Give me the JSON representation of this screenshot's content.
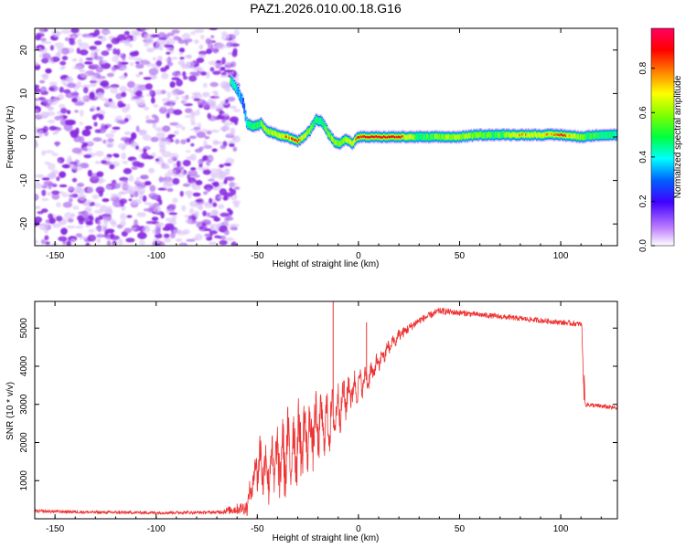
{
  "title": "PAZ1.2026.010.00.18.G16",
  "chart_data": [
    {
      "type": "heatmap",
      "name": "spectrogram",
      "xlabel": "Height of straight line (km)",
      "ylabel": "Frequency (Hz)",
      "xlim": [
        -160,
        128
      ],
      "ylim": [
        -25,
        25
      ],
      "xticks": [
        -150,
        -100,
        -50,
        0,
        50,
        100
      ],
      "yticks": [
        -20,
        -10,
        0,
        10,
        20
      ],
      "noise_region_x": [
        -160,
        -60
      ],
      "ridge": {
        "x": [
          -63,
          -60,
          -57,
          -55,
          -52,
          -48,
          -45,
          -40,
          -35,
          -30,
          -27,
          -24,
          -21,
          -18,
          -15,
          -12,
          -9,
          -6,
          -3,
          0,
          10,
          20,
          30,
          40,
          50,
          60,
          70,
          80,
          90,
          100,
          110,
          120,
          128
        ],
        "freq": [
          13,
          11,
          8,
          3,
          2.5,
          3,
          1.5,
          0.5,
          0,
          -1,
          0,
          1.5,
          4,
          3.5,
          1,
          -1,
          -1.5,
          -0.5,
          -1.5,
          0,
          0,
          0,
          0,
          0,
          0,
          0.5,
          0.5,
          0.5,
          0.5,
          0.5,
          0,
          0.5,
          0.5
        ],
        "amplitude": [
          0.5,
          0.4,
          0.3,
          0.45,
          0.5,
          0.6,
          0.65,
          0.7,
          0.8,
          0.9,
          0.7,
          0.6,
          0.5,
          0.5,
          0.6,
          0.65,
          0.6,
          0.7,
          0.7,
          0.9,
          0.95,
          0.9,
          0.5,
          0.6,
          0.65,
          0.6,
          0.55,
          0.8,
          0.7,
          0.9,
          0.6,
          0.5,
          0.45
        ]
      },
      "colorbar": {
        "label": "Normalized spectral amplitude",
        "range": [
          0,
          1
        ],
        "ticks": [
          "0.0",
          "0.2",
          "0.4",
          "0.6",
          "0.8"
        ],
        "colors": [
          "#ffffff",
          "#8000ff",
          "#0000ff",
          "#00ffff",
          "#00ff00",
          "#ffff00",
          "#ff8000",
          "#ff0000",
          "#ff0080"
        ]
      }
    },
    {
      "type": "line",
      "name": "snr",
      "xlabel": "Height of straight line (km)",
      "ylabel": "SNR (10 * v/v)",
      "xlim": [
        -160,
        128
      ],
      "ylim": [
        0,
        5700
      ],
      "xticks": [
        -150,
        -100,
        -50,
        0,
        50,
        100
      ],
      "yticks": [
        1000,
        2000,
        3000,
        4000,
        5000
      ],
      "color": "#ee3333",
      "x": [
        -160,
        -130,
        -100,
        -70,
        -55,
        -50,
        -45,
        -40,
        -35,
        -30,
        -25,
        -20,
        -15,
        -10,
        -5,
        0,
        5,
        10,
        15,
        20,
        30,
        40,
        50,
        60,
        70,
        80,
        90,
        100,
        110,
        111,
        112,
        120,
        128
      ],
      "y": [
        200,
        170,
        160,
        170,
        300,
        1500,
        1300,
        1500,
        1700,
        2000,
        2200,
        2400,
        2500,
        2900,
        3300,
        3500,
        3700,
        4100,
        4500,
        4800,
        5200,
        5450,
        5400,
        5350,
        5300,
        5250,
        5200,
        5150,
        5100,
        5050,
        3000,
        2950,
        2900
      ],
      "amplitude": [
        40,
        40,
        40,
        40,
        200,
        700,
        800,
        900,
        1000,
        1000,
        900,
        800,
        700,
        600,
        500,
        350,
        300,
        250,
        200,
        150,
        100,
        90,
        80,
        70,
        70,
        70,
        70,
        70,
        70,
        70,
        60,
        60,
        60
      ],
      "spikes": [
        {
          "x": -12.5,
          "y": 5700
        },
        {
          "x": 4,
          "y": 5150
        }
      ]
    }
  ]
}
